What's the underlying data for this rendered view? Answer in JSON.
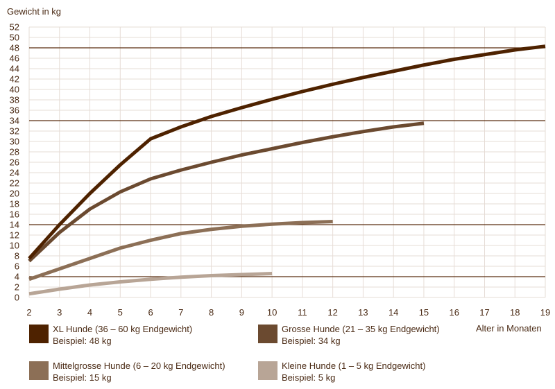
{
  "chart_data": {
    "type": "line",
    "ylabel": "Gewicht in kg",
    "xlabel": "Alter in Monaten",
    "xlim": [
      2,
      19
    ],
    "ylim": [
      0,
      52
    ],
    "x_ticks": [
      2,
      3,
      4,
      5,
      6,
      7,
      8,
      9,
      10,
      11,
      12,
      13,
      14,
      15,
      16,
      17,
      18,
      19
    ],
    "y_ticks": [
      0,
      2,
      4,
      6,
      8,
      10,
      12,
      14,
      16,
      18,
      20,
      22,
      24,
      26,
      28,
      30,
      32,
      34,
      36,
      38,
      40,
      42,
      44,
      46,
      48,
      50,
      52
    ],
    "grid": true,
    "reference_lines": [
      4,
      14,
      34,
      48
    ],
    "series": [
      {
        "name": "XL Hunde (36 – 60 kg Endgewicht)",
        "example": "Beispiel: 48 kg",
        "color": "#4e2200",
        "x": [
          2,
          3,
          4,
          5,
          6,
          7,
          8,
          9,
          10,
          11,
          12,
          13,
          14,
          15,
          16,
          17,
          18,
          19
        ],
        "y": [
          7.5,
          14,
          20,
          25.5,
          30.5,
          32.8,
          34.8,
          36.5,
          38.1,
          39.6,
          41,
          42.3,
          43.5,
          44.7,
          45.8,
          46.7,
          47.6,
          48.3
        ]
      },
      {
        "name": "Grosse Hunde (21 – 35 kg Endgewicht)",
        "example": "Beispiel: 34 kg",
        "color": "#6b4a30",
        "x": [
          2,
          3,
          4,
          5,
          6,
          7,
          8,
          9,
          10,
          11,
          12,
          13,
          14,
          15
        ],
        "y": [
          7,
          12.5,
          17,
          20.3,
          22.8,
          24.5,
          26,
          27.4,
          28.6,
          29.8,
          30.9,
          31.9,
          32.8,
          33.5
        ]
      },
      {
        "name": "Mittelgrosse Hunde (6 – 20 kg Endgewicht)",
        "example": "Beispiel: 15 kg",
        "color": "#8c6f56",
        "x": [
          2,
          3,
          4,
          5,
          6,
          7,
          8,
          9,
          10,
          11,
          12
        ],
        "y": [
          3.5,
          5.5,
          7.5,
          9.5,
          11,
          12.3,
          13.1,
          13.7,
          14.1,
          14.4,
          14.6
        ]
      },
      {
        "name": "Kleine Hunde (1 – 5 kg Endgewicht)",
        "example": "Beispiel: 5 kg",
        "color": "#b8a596",
        "x": [
          2,
          3,
          4,
          5,
          6,
          7,
          8,
          9,
          10
        ],
        "y": [
          0.7,
          1.6,
          2.4,
          3,
          3.5,
          3.9,
          4.2,
          4.4,
          4.6
        ]
      }
    ],
    "legend_placement": "bottom"
  }
}
